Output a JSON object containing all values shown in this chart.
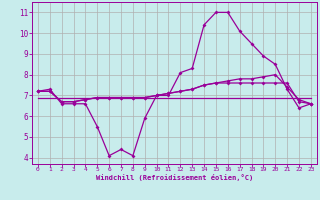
{
  "xlabel": "Windchill (Refroidissement éolien,°C)",
  "background_color": "#c8ecec",
  "grid_color": "#b0b0b0",
  "line_color": "#990099",
  "xlim": [
    -0.5,
    23.5
  ],
  "ylim": [
    3.7,
    11.5
  ],
  "yticks": [
    4,
    5,
    6,
    7,
    8,
    9,
    10,
    11
  ],
  "xticks": [
    0,
    1,
    2,
    3,
    4,
    5,
    6,
    7,
    8,
    9,
    10,
    11,
    12,
    13,
    14,
    15,
    16,
    17,
    18,
    19,
    20,
    21,
    22,
    23
  ],
  "line1_x": [
    0,
    1,
    2,
    3,
    4,
    5,
    6,
    7,
    8,
    9,
    10,
    11,
    12,
    13,
    14,
    15,
    16,
    17,
    18,
    19,
    20,
    21,
    22,
    23
  ],
  "line1_y": [
    7.2,
    7.3,
    6.6,
    6.6,
    6.6,
    5.5,
    4.1,
    4.4,
    4.1,
    5.9,
    7.0,
    7.0,
    8.1,
    8.3,
    10.4,
    11.0,
    11.0,
    10.1,
    9.5,
    8.9,
    8.5,
    7.3,
    6.4,
    6.6
  ],
  "line2_x": [
    0,
    1,
    2,
    3,
    4,
    5,
    6,
    7,
    8,
    9,
    10,
    11,
    12,
    13,
    14,
    15,
    16,
    17,
    18,
    19,
    20,
    21,
    22,
    23
  ],
  "line2_y": [
    7.2,
    7.2,
    6.7,
    6.7,
    6.8,
    6.9,
    6.9,
    6.9,
    6.9,
    6.9,
    7.0,
    7.1,
    7.2,
    7.3,
    7.5,
    7.6,
    7.7,
    7.8,
    7.8,
    7.9,
    8.0,
    7.4,
    6.8,
    6.6
  ],
  "line3_x": [
    0,
    1,
    2,
    3,
    4,
    5,
    6,
    7,
    8,
    9,
    10,
    11,
    12,
    13,
    14,
    15,
    16,
    17,
    18,
    19,
    20,
    21,
    22,
    23
  ],
  "line3_y": [
    7.2,
    7.2,
    6.7,
    6.7,
    6.8,
    6.9,
    6.9,
    6.9,
    6.9,
    6.9,
    7.0,
    7.1,
    7.2,
    7.3,
    7.5,
    7.6,
    7.6,
    7.6,
    7.6,
    7.6,
    7.6,
    7.6,
    6.7,
    6.6
  ],
  "line4_x": [
    0,
    23
  ],
  "line4_y": [
    6.9,
    6.9
  ]
}
